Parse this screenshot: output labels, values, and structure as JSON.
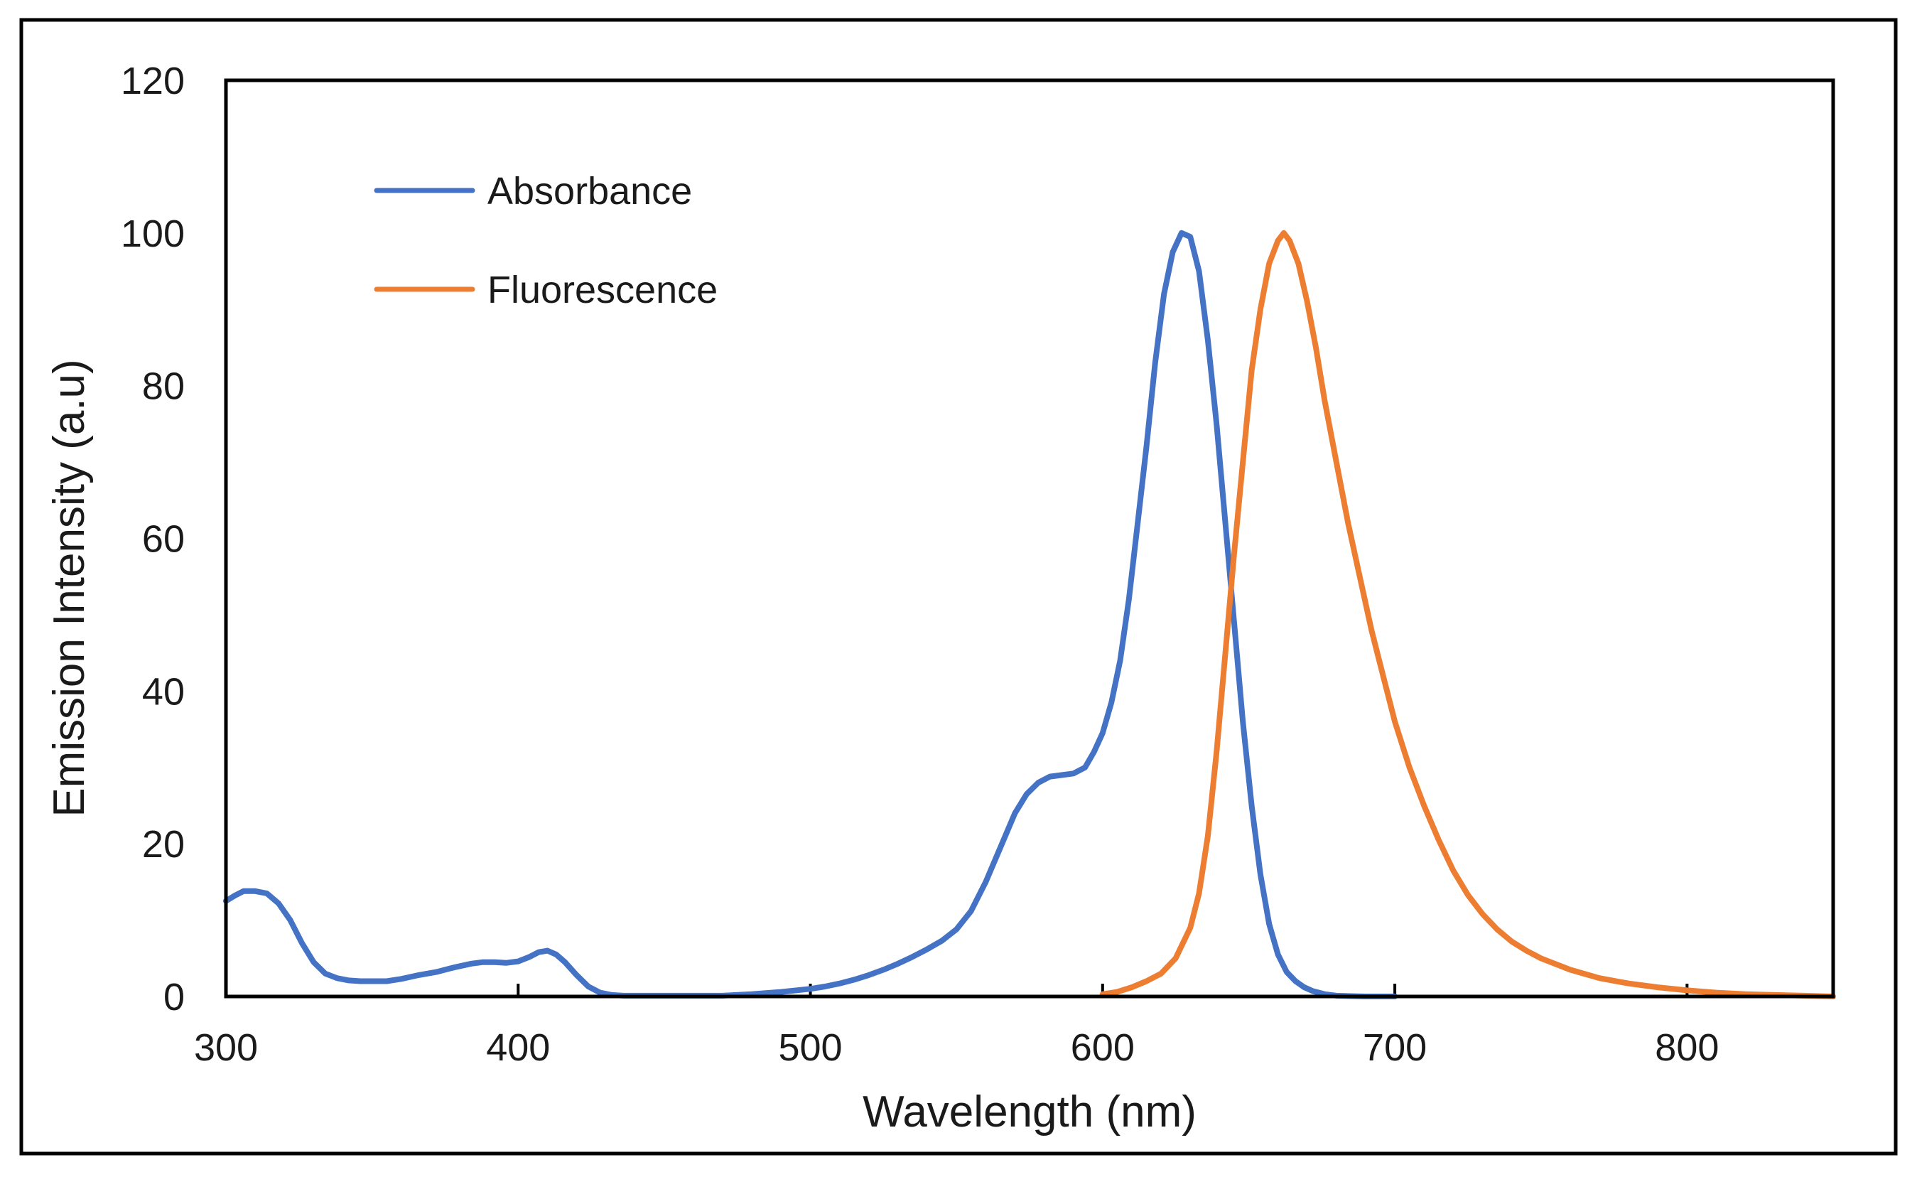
{
  "chart_data": {
    "type": "line",
    "title": "",
    "xlabel": "Wavelength (nm)",
    "ylabel": "Emission Intensity (a.u)",
    "xlim": [
      300,
      850
    ],
    "ylim": [
      0,
      120
    ],
    "xticks": [
      300,
      400,
      500,
      600,
      700,
      800
    ],
    "yticks": [
      0,
      20,
      40,
      60,
      80,
      100,
      120
    ],
    "xtick_labels": [
      "300",
      "400",
      "500",
      "600",
      "700",
      "800"
    ],
    "ytick_labels": [
      "0",
      "20",
      "40",
      "60",
      "80",
      "100",
      "120"
    ],
    "grid": false,
    "legend_position": "top-left",
    "series": [
      {
        "name": "Absorbance",
        "color": "#4472C4",
        "x": [
          300,
          303,
          306,
          310,
          314,
          318,
          322,
          326,
          330,
          334,
          338,
          342,
          346,
          350,
          355,
          360,
          366,
          372,
          378,
          384,
          388,
          392,
          396,
          400,
          404,
          407,
          410,
          413,
          416,
          420,
          424,
          428,
          432,
          436,
          440,
          450,
          460,
          470,
          480,
          490,
          500,
          505,
          510,
          515,
          520,
          525,
          530,
          535,
          540,
          545,
          550,
          555,
          560,
          565,
          570,
          574,
          578,
          582,
          586,
          590,
          594,
          597,
          600,
          603,
          606,
          609,
          612,
          615,
          618,
          621,
          624,
          627,
          630,
          633,
          636,
          639,
          642,
          645,
          648,
          651,
          654,
          657,
          660,
          663,
          666,
          669,
          672,
          676,
          680,
          685,
          690,
          695,
          700
        ],
        "y": [
          12.5,
          13.2,
          13.8,
          13.8,
          13.5,
          12.2,
          10.0,
          7.0,
          4.5,
          3.0,
          2.4,
          2.1,
          2.0,
          2.0,
          2.0,
          2.3,
          2.8,
          3.2,
          3.8,
          4.3,
          4.5,
          4.5,
          4.4,
          4.6,
          5.2,
          5.8,
          6.0,
          5.5,
          4.5,
          2.8,
          1.3,
          0.5,
          0.2,
          0.1,
          0.1,
          0.1,
          0.1,
          0.1,
          0.3,
          0.6,
          1.0,
          1.3,
          1.7,
          2.2,
          2.8,
          3.5,
          4.3,
          5.2,
          6.2,
          7.3,
          8.8,
          11.2,
          15.0,
          19.5,
          24.0,
          26.5,
          28.0,
          28.8,
          29.0,
          29.2,
          30.0,
          32.0,
          34.5,
          38.5,
          44.0,
          52.0,
          62.0,
          72.0,
          83.0,
          92.0,
          97.5,
          100.0,
          99.5,
          95.0,
          86.0,
          75.0,
          62.0,
          49.0,
          36.0,
          25.0,
          16.0,
          9.5,
          5.5,
          3.2,
          2.0,
          1.2,
          0.7,
          0.3,
          0.1,
          0.05,
          0.0,
          0.0,
          0.0
        ]
      },
      {
        "name": "Fluorescence",
        "color": "#ED7D31",
        "x": [
          600,
          605,
          610,
          615,
          620,
          625,
          630,
          633,
          636,
          639,
          642,
          645,
          648,
          651,
          654,
          657,
          660,
          662,
          664,
          667,
          670,
          673,
          676,
          680,
          684,
          688,
          692,
          696,
          700,
          705,
          710,
          715,
          720,
          725,
          730,
          735,
          740,
          745,
          750,
          760,
          770,
          780,
          790,
          800,
          810,
          820,
          830,
          840,
          850
        ],
        "y": [
          0.3,
          0.6,
          1.2,
          2.0,
          3.0,
          5.0,
          9.0,
          13.5,
          21.0,
          32.0,
          45.0,
          58.0,
          70.0,
          82.0,
          90.0,
          96.0,
          99.0,
          100.0,
          99.0,
          96.0,
          91.0,
          85.0,
          78.0,
          70.0,
          62.0,
          55.0,
          48.0,
          42.0,
          36.0,
          30.0,
          25.0,
          20.5,
          16.5,
          13.3,
          10.8,
          8.8,
          7.2,
          6.0,
          5.0,
          3.5,
          2.4,
          1.7,
          1.2,
          0.8,
          0.5,
          0.3,
          0.2,
          0.1,
          0.0
        ]
      }
    ]
  }
}
